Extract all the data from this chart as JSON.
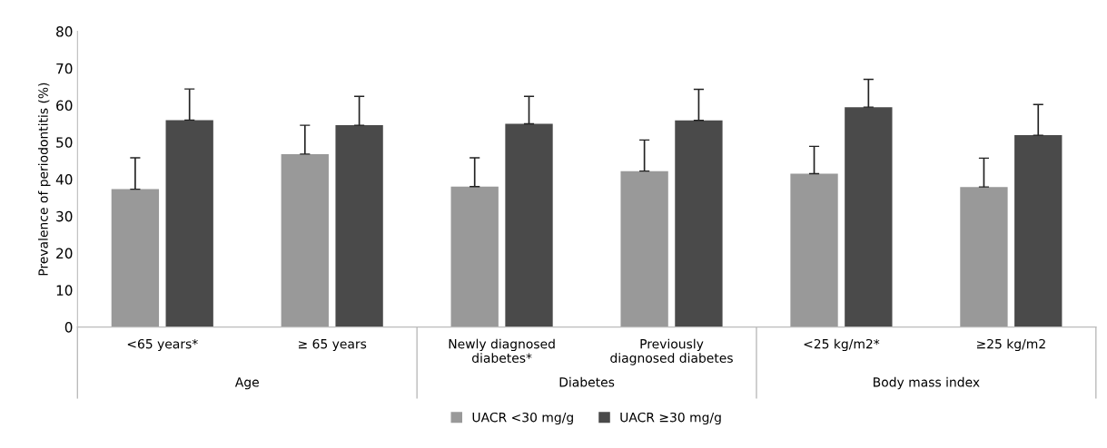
{
  "chart_data": {
    "type": "bar",
    "ylabel": "Prevalence of periodontitis (%)",
    "categories": [
      "<65 years*",
      "≥ 65 years",
      "Newly diagnosed diabetes*",
      "Previously diagnosed diabetes",
      "<25 kg/m2*",
      "≥25 kg/m2"
    ],
    "series": [
      {
        "name": "UACR <30 mg/g",
        "color": "#999999",
        "values": [
          37.3,
          46.8,
          38.0,
          42.2,
          41.5,
          37.9
        ],
        "errors": [
          [
            37.3,
            45.8
          ],
          [
            46.8,
            54.6
          ],
          [
            38.0,
            45.8
          ],
          [
            42.2,
            50.6
          ],
          [
            41.5,
            48.9
          ],
          [
            37.9,
            45.7
          ]
        ]
      },
      {
        "name": "UACR ≥30 mg/g",
        "color": "#4a4a4a",
        "values": [
          56.0,
          54.6,
          55.0,
          55.9,
          59.5,
          51.9
        ],
        "errors": [
          [
            56.0,
            64.4
          ],
          [
            54.6,
            62.4
          ],
          [
            55.0,
            62.4
          ],
          [
            55.9,
            64.3
          ],
          [
            59.5,
            67.0
          ],
          [
            51.9,
            60.2
          ]
        ]
      }
    ],
    "annotations": [
      "Age",
      "Diabetes",
      "Body mass index"
    ],
    "ylim": [
      0,
      80
    ],
    "yticks": [
      0,
      10,
      20,
      30,
      40,
      50,
      60,
      70,
      80
    ],
    "grid": false,
    "legend": "bottom"
  }
}
